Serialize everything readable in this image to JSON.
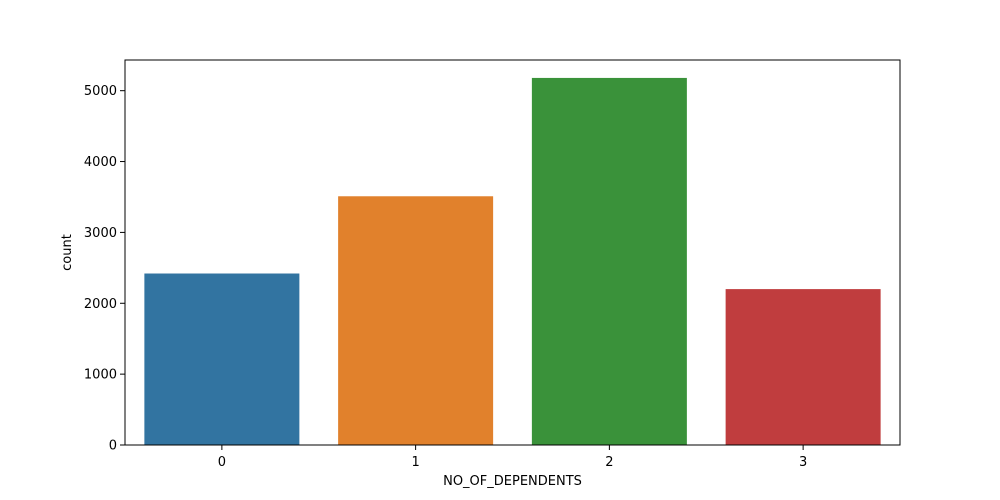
{
  "chart_data": {
    "type": "bar",
    "title": "",
    "xlabel": "NO_OF_DEPENDENTS",
    "ylabel": "count",
    "categories": [
      "0",
      "1",
      "2",
      "3"
    ],
    "values": [
      2420,
      3510,
      5180,
      2200
    ],
    "colors": [
      "#3274a1",
      "#e1812c",
      "#3a923a",
      "#c03d3e"
    ],
    "ylim": [
      0,
      5433
    ],
    "yticks": [
      0,
      1000,
      2000,
      3000,
      4000,
      5000
    ],
    "ytick_labels": [
      "0",
      "1000",
      "2000",
      "3000",
      "4000",
      "5000"
    ],
    "grid": false,
    "legend": "none"
  }
}
